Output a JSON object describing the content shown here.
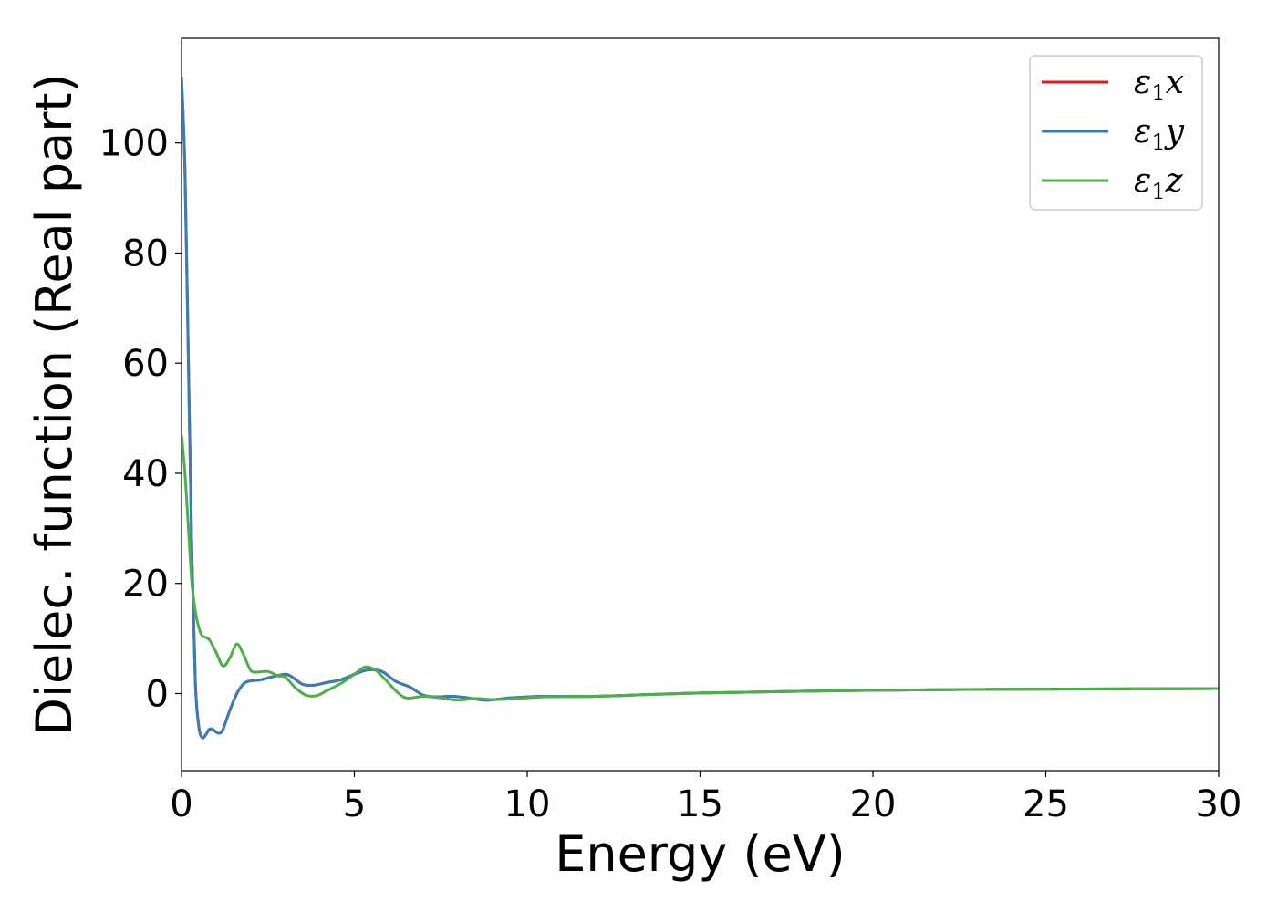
{
  "chart_data": {
    "type": "line",
    "title": "",
    "xlabel": "Energy (eV)",
    "ylabel": "Dielec. function (Real part)",
    "xlim": [
      0,
      30
    ],
    "ylim": [
      -14,
      119
    ],
    "xticks": [
      0,
      5,
      10,
      15,
      20,
      25,
      30
    ],
    "yticks": [
      0,
      20,
      40,
      60,
      80,
      100
    ],
    "grid": false,
    "legend_position": "top-right",
    "series": [
      {
        "name": "ε1x",
        "legend": {
          "symbol": "ε",
          "sub": "1",
          "var": "x"
        },
        "color": "#e41a1c",
        "x": [
          0,
          0.1,
          0.2,
          0.3,
          0.4,
          0.5,
          0.6,
          0.7,
          0.8,
          0.9,
          1.0,
          1.1,
          1.2,
          1.4,
          1.6,
          1.8,
          2.0,
          2.3,
          2.6,
          3.0,
          3.2,
          3.5,
          3.8,
          4.2,
          4.6,
          5.0,
          5.4,
          5.8,
          6.2,
          6.6,
          7.0,
          7.4,
          7.8,
          8.2,
          8.8,
          9.5,
          10.5,
          12,
          15,
          20,
          25,
          30
        ],
        "y": [
          112,
          95,
          60,
          25,
          2,
          -6,
          -8,
          -7.5,
          -6.5,
          -6.5,
          -7,
          -7.2,
          -6.5,
          -3,
          0,
          1.8,
          2.3,
          2.5,
          3.0,
          3.5,
          3.0,
          1.7,
          1.5,
          2.0,
          2.5,
          3.5,
          4.3,
          4.0,
          2.2,
          1.2,
          -0.3,
          -0.6,
          -0.5,
          -0.7,
          -1.2,
          -0.8,
          -0.5,
          -0.5,
          0.1,
          0.6,
          0.8,
          0.9
        ]
      },
      {
        "name": "ε1y",
        "legend": {
          "symbol": "ε",
          "sub": "1",
          "var": "y"
        },
        "color": "#377eb8",
        "x": [
          0,
          0.1,
          0.2,
          0.3,
          0.4,
          0.5,
          0.6,
          0.7,
          0.8,
          0.9,
          1.0,
          1.1,
          1.2,
          1.4,
          1.6,
          1.8,
          2.0,
          2.3,
          2.6,
          3.0,
          3.2,
          3.5,
          3.8,
          4.2,
          4.6,
          5.0,
          5.4,
          5.8,
          6.2,
          6.6,
          7.0,
          7.4,
          7.8,
          8.2,
          8.8,
          9.5,
          10.5,
          12,
          15,
          20,
          25,
          30
        ],
        "y": [
          112,
          95,
          60,
          25,
          2,
          -6,
          -8,
          -7.5,
          -6.5,
          -6.5,
          -7,
          -7.2,
          -6.5,
          -3,
          0,
          1.8,
          2.3,
          2.5,
          3.0,
          3.5,
          3.0,
          1.7,
          1.5,
          2.0,
          2.5,
          3.5,
          4.3,
          4.0,
          2.2,
          1.2,
          -0.3,
          -0.6,
          -0.5,
          -0.7,
          -1.2,
          -0.8,
          -0.5,
          -0.5,
          0.1,
          0.6,
          0.8,
          0.9
        ]
      },
      {
        "name": "ε1z",
        "legend": {
          "symbol": "ε",
          "sub": "1",
          "var": "z"
        },
        "color": "#4daf4a",
        "x": [
          0,
          0.1,
          0.2,
          0.3,
          0.4,
          0.5,
          0.6,
          0.8,
          1.0,
          1.2,
          1.4,
          1.6,
          1.8,
          2.0,
          2.2,
          2.5,
          2.8,
          3.0,
          3.3,
          3.6,
          3.9,
          4.2,
          4.6,
          5.0,
          5.3,
          5.6,
          5.9,
          6.2,
          6.5,
          7.0,
          7.5,
          8.0,
          8.5,
          9.0,
          9.5,
          10.5,
          12,
          15,
          20,
          25,
          30
        ],
        "y": [
          47,
          40,
          30,
          20,
          15,
          12,
          10.5,
          9.8,
          7.5,
          5.0,
          6.5,
          9.0,
          7.0,
          4.2,
          3.9,
          4.0,
          3.2,
          3.0,
          1.0,
          -0.3,
          -0.4,
          0.5,
          1.8,
          3.5,
          4.8,
          4.3,
          2.5,
          0.5,
          -0.8,
          -0.5,
          -0.8,
          -1.2,
          -0.9,
          -1.1,
          -1.0,
          -0.6,
          -0.5,
          0.1,
          0.6,
          0.8,
          0.9
        ]
      }
    ]
  }
}
